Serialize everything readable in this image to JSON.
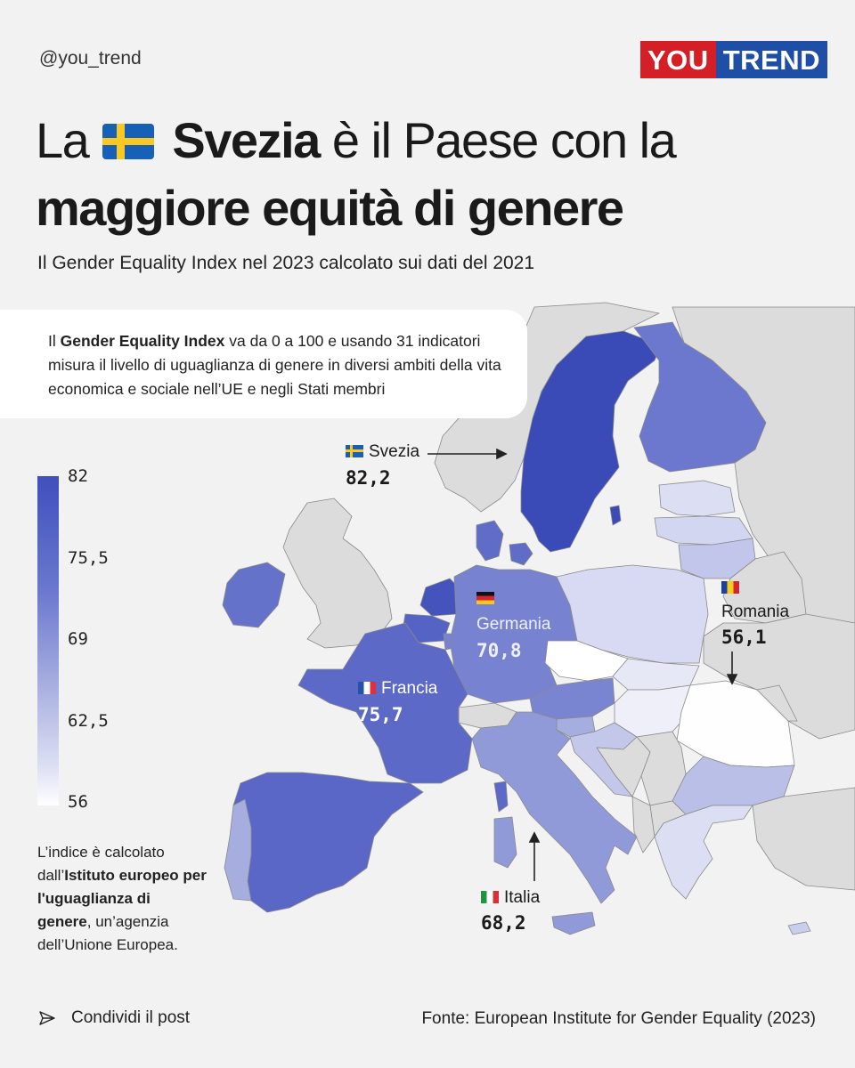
{
  "header": {
    "handle": "@you_trend",
    "logo_part1": "YOU",
    "logo_part2": "TREND"
  },
  "title": {
    "part1": "La",
    "flag_icon": "sweden-flag-icon",
    "bold1": "Svezia",
    "part2": "è il Paese con la",
    "bold2": "maggiore equità di genere"
  },
  "subtitle": "Il Gender Equality Index nel 2023 calcolato sui dati del 2021",
  "info": {
    "t1": "Il ",
    "b1": "Gender Equality Index",
    "t2": " va da 0 a 100 e usando 31 indicatori misura il livello di uguaglianza di genere in diversi ambiti della vita economica e sociale nell’UE e negli Stati membri"
  },
  "legend": {
    "ticks": [
      "82",
      "75,5",
      "69",
      "62,5",
      "56"
    ],
    "colors": [
      "#3f4fbd",
      "#6b78cf",
      "#a4acde",
      "#dcdff3",
      "#ffffff"
    ]
  },
  "note": {
    "t1": "L’indice è calcolato dall’",
    "b1": "Istituto europeo per l'uguaglianza di genere",
    "t2": ", un’agenzia dell’Unione Europea."
  },
  "callouts": {
    "svezia": {
      "name": "Svezia",
      "value": "82,2"
    },
    "germania": {
      "name": "Germania",
      "value": "70,8"
    },
    "francia": {
      "name": "Francia",
      "value": "75,7"
    },
    "romania": {
      "name": "Romania",
      "value": "56,1"
    },
    "italia": {
      "name": "Italia",
      "value": "68,2"
    }
  },
  "footer": {
    "share_label": "Condividi il post",
    "source": "Fonte: European Institute for Gender Equality (2023)"
  }
}
